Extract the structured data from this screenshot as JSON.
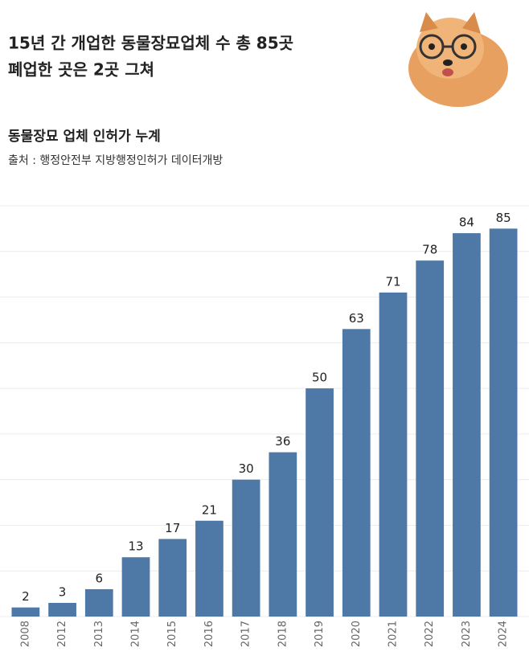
{
  "title": [
    "15년 간 개업한 동물장묘업체 수 총 85곳",
    "폐업한 곳은 2곳 그쳐"
  ],
  "chart_data": {
    "type": "bar",
    "title": "동물장묘 업체 인허가 누계",
    "source": "출처 : 행정안전부 지방행정인허가 데이터개방",
    "categories": [
      "2008",
      "2012",
      "2013",
      "2014",
      "2015",
      "2016",
      "2017",
      "2018",
      "2019",
      "2020",
      "2021",
      "2022",
      "2023",
      "2024"
    ],
    "values": [
      2,
      3,
      6,
      13,
      17,
      21,
      30,
      36,
      50,
      63,
      71,
      78,
      84,
      85
    ],
    "color": "#4e79a7",
    "ylim": [
      0,
      90
    ],
    "yticks": [
      0,
      10,
      20,
      30,
      40,
      50,
      60,
      70,
      80,
      90
    ],
    "grid": true
  }
}
